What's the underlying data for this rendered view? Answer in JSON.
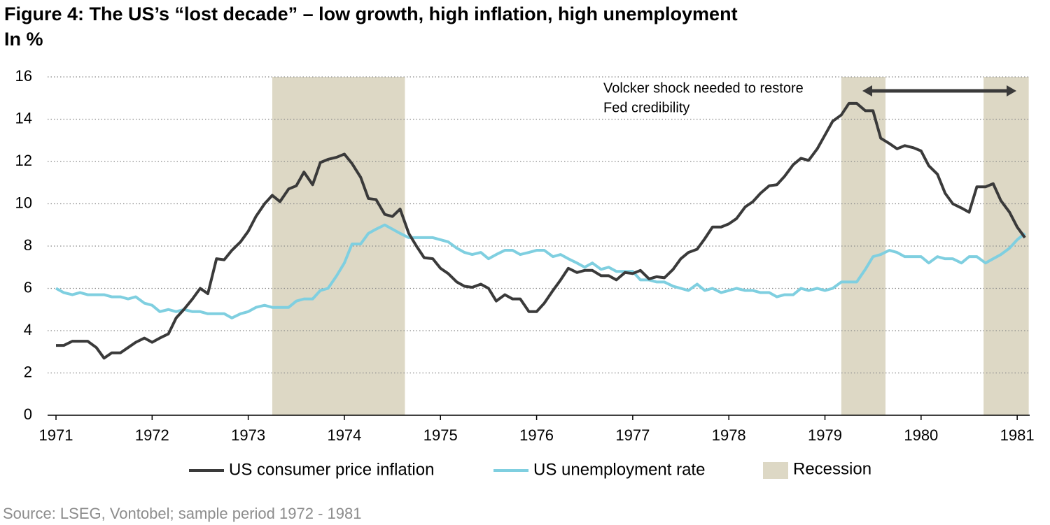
{
  "chart_data": {
    "type": "line",
    "title": "Figure 4: The US’s “lost decade” – low growth, high inflation, high unemployment",
    "subtitle": "In %",
    "x": [
      1971,
      1971.08,
      1971.17,
      1971.25,
      1971.33,
      1971.42,
      1971.5,
      1971.58,
      1971.67,
      1971.75,
      1971.83,
      1971.92,
      1972,
      1972.08,
      1972.17,
      1972.25,
      1972.33,
      1972.42,
      1972.5,
      1972.58,
      1972.67,
      1972.75,
      1972.83,
      1972.92,
      1973,
      1973.08,
      1973.17,
      1973.25,
      1973.33,
      1973.42,
      1973.5,
      1973.58,
      1973.67,
      1973.75,
      1973.83,
      1973.92,
      1974,
      1974.08,
      1974.17,
      1974.25,
      1974.33,
      1974.42,
      1974.5,
      1974.58,
      1974.67,
      1974.75,
      1974.83,
      1974.92,
      1975,
      1975.08,
      1975.17,
      1975.25,
      1975.33,
      1975.42,
      1975.5,
      1975.58,
      1975.67,
      1975.75,
      1975.83,
      1975.92,
      1976,
      1976.08,
      1976.17,
      1976.25,
      1976.33,
      1976.42,
      1976.5,
      1976.58,
      1976.67,
      1976.75,
      1976.83,
      1976.92,
      1977,
      1977.08,
      1977.17,
      1977.25,
      1977.33,
      1977.42,
      1977.5,
      1977.58,
      1977.67,
      1977.75,
      1977.83,
      1977.92,
      1978,
      1978.08,
      1978.17,
      1978.25,
      1978.33,
      1978.42,
      1978.5,
      1978.58,
      1978.67,
      1978.75,
      1978.83,
      1978.92,
      1979,
      1979.08,
      1979.17,
      1979.25,
      1979.33,
      1979.42,
      1979.5,
      1979.58,
      1979.67,
      1979.75,
      1979.83,
      1979.92,
      1980,
      1980.08,
      1980.17,
      1980.25,
      1980.33,
      1980.42,
      1980.5,
      1980.58,
      1980.67,
      1980.75,
      1980.83,
      1980.92,
      1981,
      1981.08
    ],
    "series": [
      {
        "name": "US consumer price inflation",
        "color": "#3a3a3a",
        "values": [
          3.3,
          3.3,
          3.5,
          3.5,
          3.5,
          3.2,
          2.7,
          2.95,
          2.95,
          3.2,
          3.45,
          3.65,
          3.45,
          3.65,
          3.85,
          4.6,
          5.0,
          5.5,
          6.0,
          5.75,
          7.4,
          7.35,
          7.8,
          8.2,
          8.7,
          9.4,
          10.0,
          10.4,
          10.1,
          10.7,
          10.85,
          11.5,
          10.9,
          11.95,
          12.1,
          12.2,
          12.35,
          11.9,
          11.25,
          10.25,
          10.2,
          9.5,
          9.4,
          9.75,
          8.6,
          8.0,
          7.45,
          7.4,
          6.95,
          6.7,
          6.3,
          6.1,
          6.05,
          6.2,
          6.0,
          5.4,
          5.7,
          5.5,
          5.5,
          4.9,
          4.9,
          5.3,
          5.9,
          6.4,
          6.95,
          6.75,
          6.85,
          6.85,
          6.6,
          6.6,
          6.4,
          6.75,
          6.7,
          6.85,
          6.45,
          6.55,
          6.5,
          6.9,
          7.4,
          7.7,
          7.85,
          8.35,
          8.9,
          8.9,
          9.05,
          9.3,
          9.85,
          10.1,
          10.5,
          10.85,
          10.9,
          11.3,
          11.85,
          12.15,
          12.05,
          12.6,
          13.25,
          13.9,
          14.2,
          14.75,
          14.75,
          14.4,
          14.4,
          13.1,
          12.85,
          12.6,
          12.75,
          12.65,
          12.5,
          11.8,
          11.4,
          10.5,
          10.0,
          9.8,
          9.6,
          10.8,
          10.8,
          10.95,
          10.15,
          9.6,
          8.9,
          8.4
        ]
      },
      {
        "name": "US unemployment rate",
        "color": "#7fcfe0",
        "values": [
          6.0,
          5.8,
          5.7,
          5.8,
          5.7,
          5.7,
          5.7,
          5.6,
          5.6,
          5.5,
          5.6,
          5.3,
          5.2,
          4.9,
          5.0,
          4.9,
          5.0,
          4.9,
          4.9,
          4.8,
          4.8,
          4.8,
          4.6,
          4.8,
          4.9,
          5.1,
          5.2,
          5.1,
          5.1,
          5.1,
          5.4,
          5.5,
          5.5,
          5.9,
          6.0,
          6.6,
          7.2,
          8.1,
          8.1,
          8.6,
          8.8,
          9.0,
          8.8,
          8.6,
          8.4,
          8.4,
          8.4,
          8.4,
          8.3,
          8.2,
          7.9,
          7.7,
          7.6,
          7.7,
          7.4,
          7.6,
          7.8,
          7.8,
          7.6,
          7.7,
          7.8,
          7.8,
          7.5,
          7.6,
          7.4,
          7.2,
          7.0,
          7.2,
          6.9,
          7.0,
          6.8,
          6.8,
          6.8,
          6.4,
          6.4,
          6.3,
          6.3,
          6.1,
          6.0,
          5.9,
          6.2,
          5.9,
          6.0,
          5.8,
          5.9,
          6.0,
          5.9,
          5.9,
          5.8,
          5.8,
          5.6,
          5.7,
          5.7,
          6.0,
          5.9,
          6.0,
          5.9,
          6.0,
          6.3,
          6.3,
          6.3,
          6.9,
          7.5,
          7.6,
          7.8,
          7.7,
          7.5,
          7.5,
          7.5,
          7.2,
          7.5,
          7.4,
          7.4,
          7.2,
          7.5,
          7.5,
          7.2,
          7.4,
          7.6,
          7.9,
          8.3,
          8.6
        ]
      }
    ],
    "recession": {
      "name": "Recession",
      "color": "#ddd8c5",
      "spans": [
        [
          1973.25,
          1974.63
        ],
        [
          1979.17,
          1979.63
        ],
        [
          1980.65,
          1981.12
        ]
      ]
    },
    "annotation": [
      "Volcker shock needed to restore",
      "Fed credibility"
    ],
    "xlim": [
      1971,
      1981.13
    ],
    "xticks": [
      1971,
      1972,
      1973,
      1974,
      1975,
      1976,
      1977,
      1978,
      1979,
      1980,
      1981
    ],
    "ylim": [
      0,
      16
    ],
    "yticks": [
      0,
      2,
      4,
      6,
      8,
      10,
      12,
      14,
      16
    ],
    "grid": true,
    "legend": "bottom",
    "source": "Source: LSEG, Vontobel; sample period 1972 - 1981"
  }
}
